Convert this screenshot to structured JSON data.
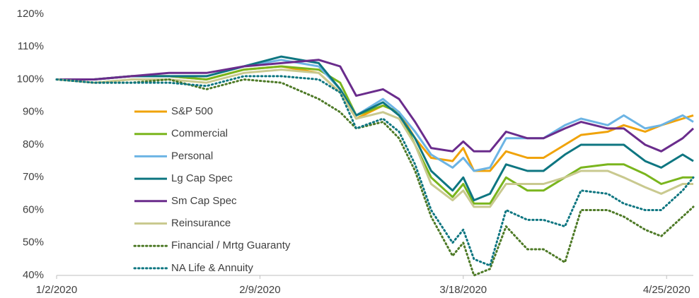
{
  "chart_data": {
    "type": "line",
    "x": [
      "1/2/2020",
      "1/9/2020",
      "1/16/2020",
      "1/23/2020",
      "1/30/2020",
      "2/6/2020",
      "2/13/2020",
      "2/20/2020",
      "2/24/2020",
      "2/27/2020",
      "3/3/2020",
      "3/6/2020",
      "3/9/2020",
      "3/12/2020",
      "3/16/2020",
      "3/18/2020",
      "3/20/2020",
      "3/23/2020",
      "3/26/2020",
      "3/30/2020",
      "4/2/2020",
      "4/6/2020",
      "4/9/2020",
      "4/14/2020",
      "4/17/2020",
      "4/21/2020",
      "4/24/2020",
      "4/28/2020",
      "4/30/2020"
    ],
    "series": [
      {
        "name": "S&P 500",
        "color": "#f0a30a",
        "style": "solid",
        "values": [
          100,
          100,
          101,
          101,
          100,
          103,
          104,
          102,
          96,
          88,
          92,
          90,
          82,
          76,
          75,
          79,
          72,
          72,
          78,
          76,
          76,
          80,
          83,
          84,
          86,
          84,
          86,
          88,
          89
        ]
      },
      {
        "name": "Commercial",
        "color": "#7ab51d",
        "style": "solid",
        "values": [
          100,
          100,
          101,
          101,
          100,
          103,
          104,
          103,
          99,
          89,
          92,
          90,
          80,
          70,
          64,
          68,
          62,
          62,
          70,
          66,
          66,
          70,
          73,
          74,
          74,
          71,
          68,
          70,
          70
        ]
      },
      {
        "name": "Personal",
        "color": "#6cb4e4",
        "style": "solid",
        "values": [
          100,
          100,
          101,
          101,
          101,
          104,
          106,
          104,
          97,
          89,
          94,
          90,
          84,
          77,
          73,
          76,
          72,
          73,
          82,
          82,
          82,
          86,
          88,
          86,
          89,
          85,
          86,
          89,
          87
        ]
      },
      {
        "name": "Lg Cap Spec",
        "color": "#0e7681",
        "style": "solid",
        "values": [
          100,
          100,
          101,
          101,
          101,
          104,
          107,
          105,
          97,
          89,
          93,
          89,
          82,
          72,
          66,
          70,
          63,
          65,
          74,
          72,
          72,
          77,
          80,
          80,
          80,
          75,
          73,
          77,
          75
        ]
      },
      {
        "name": "Sm Cap Spec",
        "color": "#6a2c8c",
        "style": "solid",
        "values": [
          100,
          100,
          101,
          102,
          102,
          104,
          105,
          106,
          104,
          95,
          97,
          94,
          87,
          79,
          78,
          81,
          78,
          78,
          84,
          82,
          82,
          85,
          87,
          85,
          85,
          80,
          78,
          82,
          85
        ]
      },
      {
        "name": "Reinsurance",
        "color": "#c9c98f",
        "style": "solid",
        "values": [
          100,
          99,
          100,
          100,
          99,
          102,
          103,
          102,
          96,
          88,
          90,
          88,
          80,
          68,
          63,
          66,
          61,
          61,
          68,
          68,
          68,
          70,
          72,
          72,
          70,
          67,
          65,
          68,
          68
        ]
      },
      {
        "name": "Financial / Mrtg Guaranty",
        "color": "#4e7a27",
        "style": "dotted",
        "values": [
          100,
          99,
          99,
          100,
          97,
          100,
          99,
          94,
          90,
          85,
          87,
          82,
          72,
          58,
          46,
          50,
          40,
          42,
          55,
          48,
          48,
          44,
          60,
          60,
          58,
          54,
          52,
          58,
          61
        ]
      },
      {
        "name": "NA Life & Annuity",
        "color": "#0e7681",
        "style": "dotted",
        "values": [
          100,
          99,
          99,
          99,
          98,
          101,
          101,
          100,
          96,
          85,
          88,
          84,
          74,
          60,
          50,
          54,
          45,
          43,
          60,
          57,
          57,
          55,
          66,
          65,
          62,
          60,
          60,
          66,
          70
        ]
      }
    ],
    "xlim": [
      "1/2/2020",
      "4/30/2020"
    ],
    "xticks": [
      "1/2/2020",
      "2/9/2020",
      "3/18/2020",
      "4/25/2020"
    ],
    "ylim": [
      40,
      120
    ],
    "yticks": [
      {
        "value": 40,
        "label": "40%"
      },
      {
        "value": 50,
        "label": "50%"
      },
      {
        "value": 60,
        "label": "60%"
      },
      {
        "value": 70,
        "label": "70%"
      },
      {
        "value": 80,
        "label": "80%"
      },
      {
        "value": 90,
        "label": "90%"
      },
      {
        "value": 100,
        "label": "100%"
      },
      {
        "value": 110,
        "label": "110%"
      },
      {
        "value": 120,
        "label": "120%"
      }
    ],
    "grid": false
  }
}
